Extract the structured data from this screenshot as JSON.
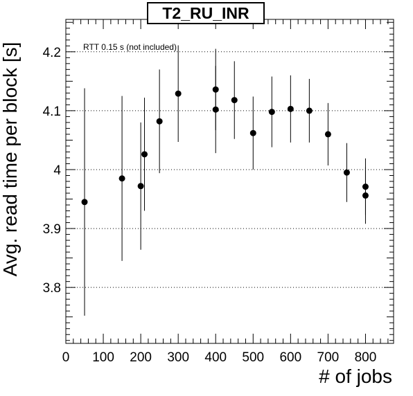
{
  "chart_data": {
    "type": "scatter",
    "title": "T2_RU_INR",
    "xlabel": "# of jobs",
    "ylabel": "Avg. read time per block [s]",
    "annotation": "RTT 0.15 s (not included)",
    "xlim": [
      0,
      875
    ],
    "ylim": [
      3.705,
      4.255
    ],
    "x_ticks": [
      "0",
      "100",
      "200",
      "300",
      "400",
      "500",
      "600",
      "700",
      "800"
    ],
    "y_ticks": [
      "3.8",
      "3.9",
      "4",
      "4.1",
      "4.2"
    ],
    "grid": "horizontal dotted",
    "marker_color": "#000000",
    "points": [
      {
        "x": 50,
        "y": 3.945,
        "err": 0.193
      },
      {
        "x": 150,
        "y": 3.985,
        "err": 0.14
      },
      {
        "x": 200,
        "y": 3.972,
        "err": 0.108
      },
      {
        "x": 210,
        "y": 4.026,
        "err": 0.096
      },
      {
        "x": 250,
        "y": 4.082,
        "err": 0.088
      },
      {
        "x": 300,
        "y": 4.129,
        "err": 0.082
      },
      {
        "x": 400,
        "y": 4.136,
        "err": 0.069
      },
      {
        "x": 400,
        "y": 4.102,
        "err": 0.074
      },
      {
        "x": 450,
        "y": 4.118,
        "err": 0.066
      },
      {
        "x": 500,
        "y": 4.062,
        "err": 0.062
      },
      {
        "x": 550,
        "y": 4.098,
        "err": 0.06
      },
      {
        "x": 600,
        "y": 4.103,
        "err": 0.057
      },
      {
        "x": 650,
        "y": 4.1,
        "err": 0.054
      },
      {
        "x": 700,
        "y": 4.06,
        "err": 0.053
      },
      {
        "x": 750,
        "y": 3.995,
        "err": 0.05
      },
      {
        "x": 800,
        "y": 3.971,
        "err": 0.048
      },
      {
        "x": 800,
        "y": 3.956,
        "err": 0.048
      }
    ]
  }
}
